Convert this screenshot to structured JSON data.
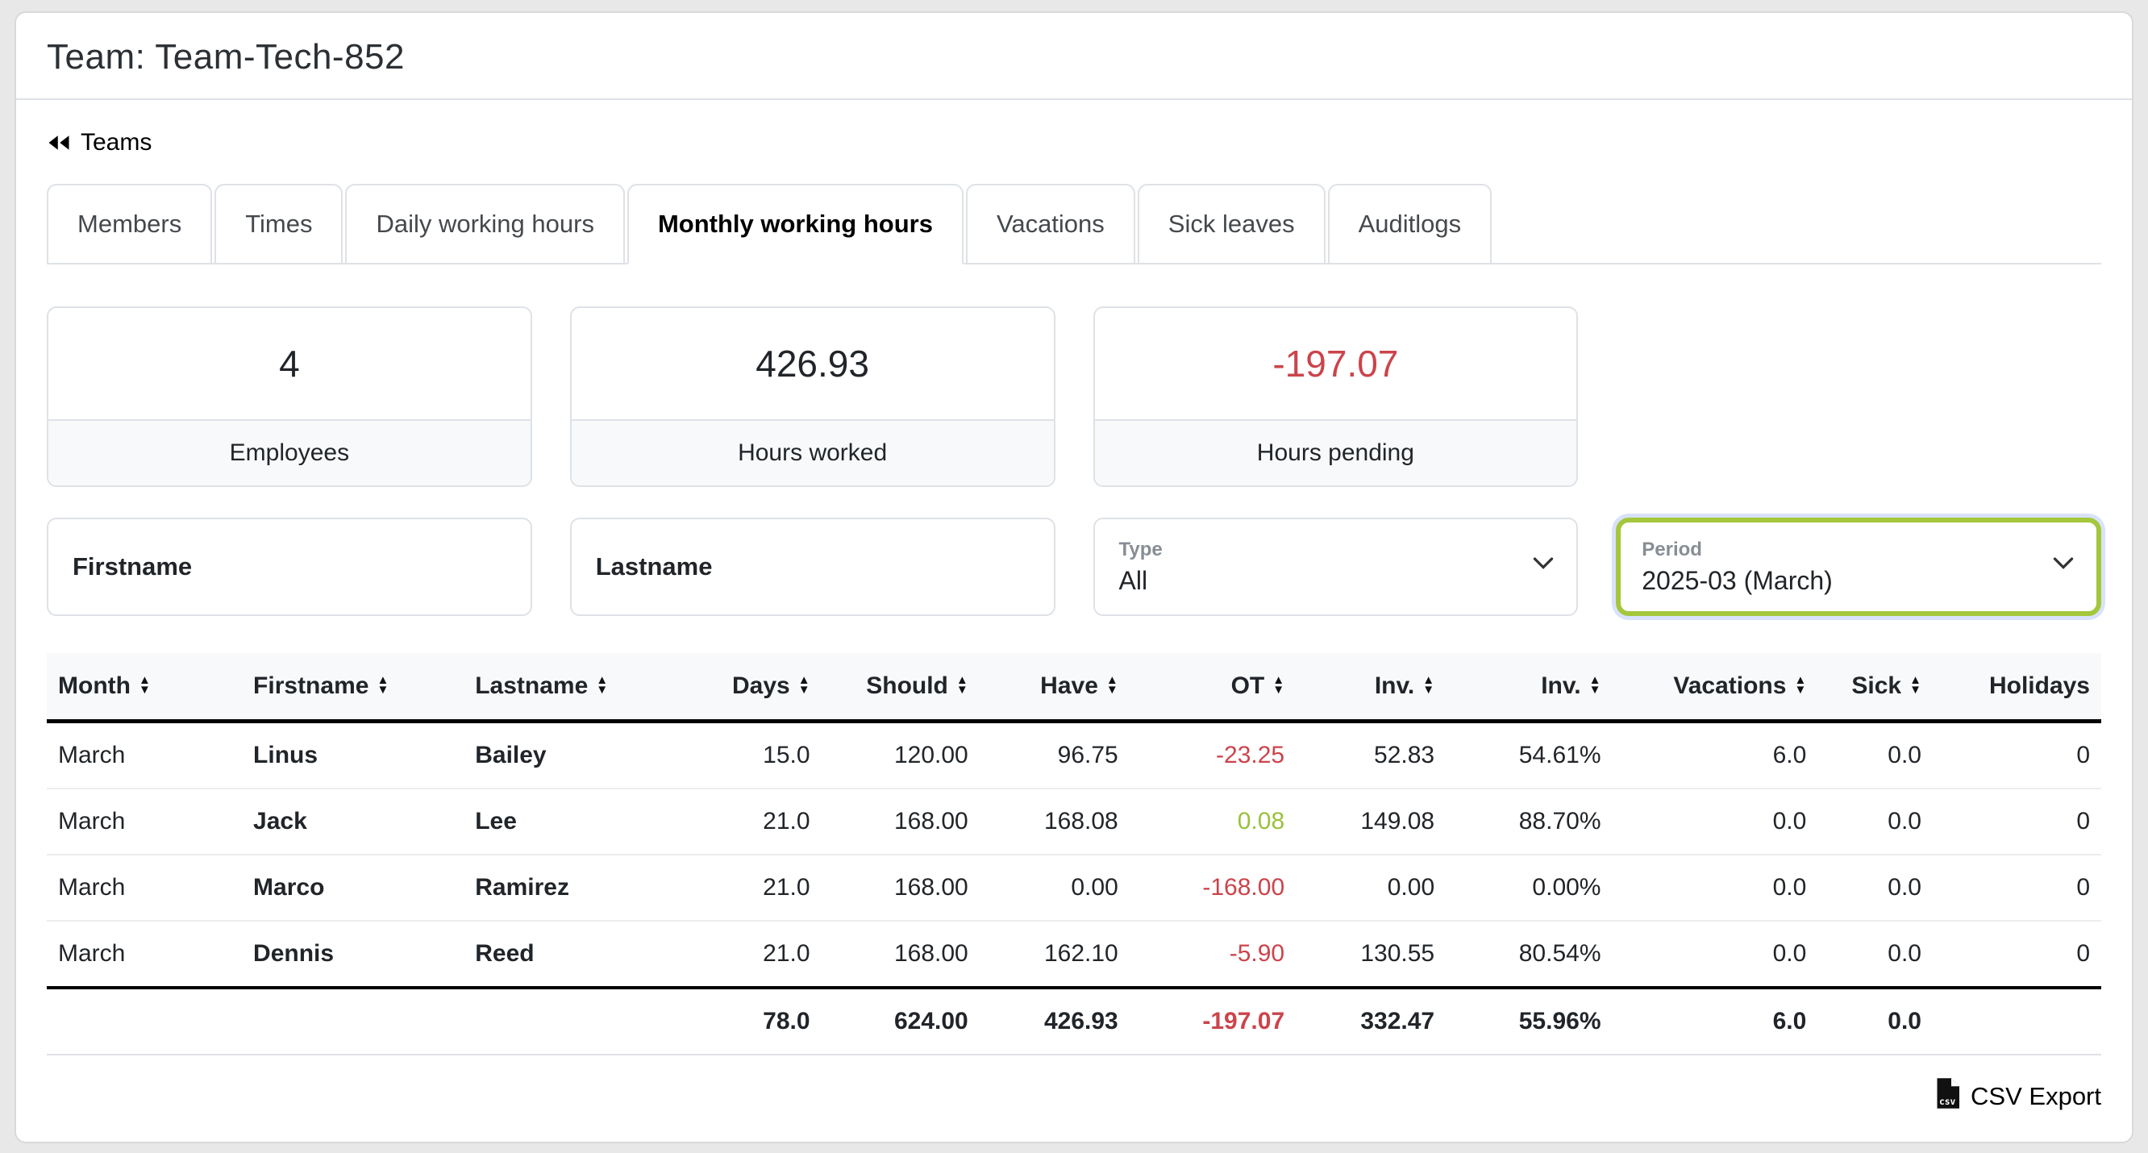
{
  "page": {
    "title": "Team: Team-Tech-852"
  },
  "nav": {
    "back_label": "Teams",
    "back_icon": "rewind-icon"
  },
  "tabs": [
    {
      "label": "Members",
      "active": false
    },
    {
      "label": "Times",
      "active": false
    },
    {
      "label": "Daily working hours",
      "active": false
    },
    {
      "label": "Monthly working hours",
      "active": true
    },
    {
      "label": "Vacations",
      "active": false
    },
    {
      "label": "Sick leaves",
      "active": false
    },
    {
      "label": "Auditlogs",
      "active": false
    }
  ],
  "summary_cards": [
    {
      "value": "4",
      "label": "Employees",
      "value_color": "default"
    },
    {
      "value": "426.93",
      "label": "Hours worked",
      "value_color": "default"
    },
    {
      "value": "-197.07",
      "label": "Hours pending",
      "value_color": "red"
    }
  ],
  "filters": {
    "firstname": {
      "placeholder": "Firstname",
      "value": ""
    },
    "lastname": {
      "placeholder": "Lastname",
      "value": ""
    },
    "type": {
      "label": "Type",
      "value": "All"
    },
    "period": {
      "label": "Period",
      "value": "2025-03 (March)",
      "highlighted": true
    }
  },
  "table": {
    "columns": [
      {
        "label": "Month",
        "sortable": true,
        "align": "left"
      },
      {
        "label": "Firstname",
        "sortable": true,
        "align": "left"
      },
      {
        "label": "Lastname",
        "sortable": true,
        "align": "left"
      },
      {
        "label": "Days",
        "sortable": true,
        "align": "right"
      },
      {
        "label": "Should",
        "sortable": true,
        "align": "right"
      },
      {
        "label": "Have",
        "sortable": true,
        "align": "right"
      },
      {
        "label": "OT",
        "sortable": true,
        "align": "right"
      },
      {
        "label": "Inv.",
        "sortable": true,
        "align": "right"
      },
      {
        "label": "Inv.",
        "sortable": true,
        "align": "right"
      },
      {
        "label": "Vacations",
        "sortable": true,
        "align": "right"
      },
      {
        "label": "Sick",
        "sortable": true,
        "align": "right"
      },
      {
        "label": "Holidays",
        "sortable": false,
        "align": "right"
      }
    ],
    "rows": [
      [
        "March",
        "Linus",
        "Bailey",
        "15.0",
        "120.00",
        "96.75",
        "-23.25",
        "52.83",
        "54.61%",
        "6.0",
        "0.0",
        "0"
      ],
      [
        "March",
        "Jack",
        "Lee",
        "21.0",
        "168.00",
        "168.08",
        "0.08",
        "149.08",
        "88.70%",
        "0.0",
        "0.0",
        "0"
      ],
      [
        "March",
        "Marco",
        "Ramirez",
        "21.0",
        "168.00",
        "0.00",
        "-168.00",
        "0.00",
        "0.00%",
        "0.0",
        "0.0",
        "0"
      ],
      [
        "March",
        "Dennis",
        "Reed",
        "21.0",
        "168.00",
        "162.10",
        "-5.90",
        "130.55",
        "80.54%",
        "0.0",
        "0.0",
        "0"
      ]
    ],
    "totals": [
      "",
      "",
      "",
      "78.0",
      "624.00",
      "426.93",
      "-197.07",
      "332.47",
      "55.96%",
      "6.0",
      "0.0",
      ""
    ]
  },
  "footer": {
    "csv_export_label": "CSV Export",
    "csv_icon": "file-csv-icon"
  },
  "colors": {
    "negative": "#cb444b",
    "positive": "#9bc13c",
    "period_highlight_border": "#a4c73c",
    "page_background": "#e8e8e8",
    "header_background": "#f8f9fa"
  }
}
